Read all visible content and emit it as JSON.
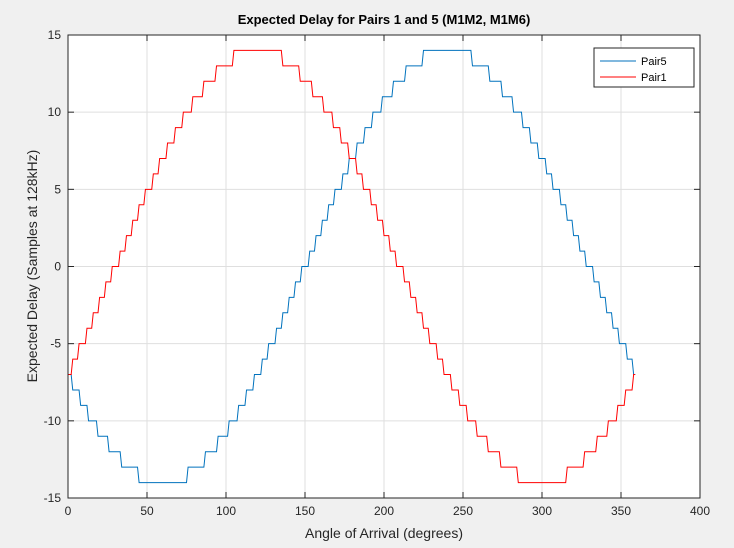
{
  "chart_data": {
    "type": "line",
    "title": "Expected Delay for Pairs 1 and 5 (M1M2, M1M6)",
    "xlabel": "Angle of Arrival (degrees)",
    "ylabel": "Expected Delay (Samples at 128kHz)",
    "xlim": [
      0,
      400
    ],
    "ylim": [
      -15,
      15
    ],
    "xticks": [
      0,
      50,
      100,
      150,
      200,
      250,
      300,
      350,
      400
    ],
    "yticks": [
      -15,
      -10,
      -5,
      0,
      5,
      10,
      15
    ],
    "grid": true,
    "legend_position": "top-right",
    "x_end": 359,
    "series": [
      {
        "name": "Pair5",
        "color": "#0072BD",
        "step_x": [
          0,
          3,
          8,
          13,
          19,
          26,
          34,
          45,
          76,
          87,
          95,
          102,
          108,
          113,
          118,
          123,
          127,
          132,
          136,
          140,
          144,
          148,
          153,
          157,
          161,
          165,
          169,
          174,
          178,
          183,
          188,
          193,
          199,
          206,
          214,
          225,
          256,
          267,
          275,
          282,
          288,
          293,
          298,
          303,
          307,
          312,
          316,
          320,
          324,
          328,
          333,
          337,
          341,
          345,
          349,
          354,
          358
        ],
        "y": [
          -7,
          -8,
          -9,
          -10,
          -11,
          -12,
          -13,
          -14,
          -13,
          -12,
          -11,
          -10,
          -9,
          -8,
          -7,
          -6,
          -5,
          -4,
          -3,
          -2,
          -1,
          0,
          1,
          2,
          3,
          4,
          5,
          6,
          7,
          8,
          9,
          10,
          11,
          12,
          13,
          14,
          13,
          12,
          11,
          10,
          9,
          8,
          7,
          6,
          5,
          4,
          3,
          2,
          1,
          0,
          -1,
          -2,
          -3,
          -4,
          -5,
          -6,
          -7
        ]
      },
      {
        "name": "Pair1",
        "color": "#FF0000",
        "step_x": [
          0,
          3,
          7,
          12,
          16,
          20,
          24,
          28,
          33,
          37,
          41,
          45,
          49,
          54,
          58,
          63,
          68,
          73,
          79,
          86,
          94,
          105,
          136,
          147,
          155,
          162,
          168,
          173,
          178,
          183,
          187,
          192,
          196,
          200,
          204,
          208,
          213,
          217,
          221,
          225,
          229,
          234,
          238,
          243,
          248,
          253,
          259,
          266,
          274,
          285,
          316,
          327,
          335,
          342,
          348,
          353,
          358
        ],
        "y": [
          -7,
          -6,
          -5,
          -4,
          -3,
          -2,
          -1,
          0,
          1,
          2,
          3,
          4,
          5,
          6,
          7,
          8,
          9,
          10,
          11,
          12,
          13,
          14,
          13,
          12,
          11,
          10,
          9,
          8,
          7,
          6,
          5,
          4,
          3,
          2,
          1,
          0,
          -1,
          -2,
          -3,
          -4,
          -5,
          -6,
          -7,
          -8,
          -9,
          -10,
          -11,
          -12,
          -13,
          -14,
          -13,
          -12,
          -11,
          -10,
          -9,
          -8,
          -7
        ]
      }
    ]
  }
}
